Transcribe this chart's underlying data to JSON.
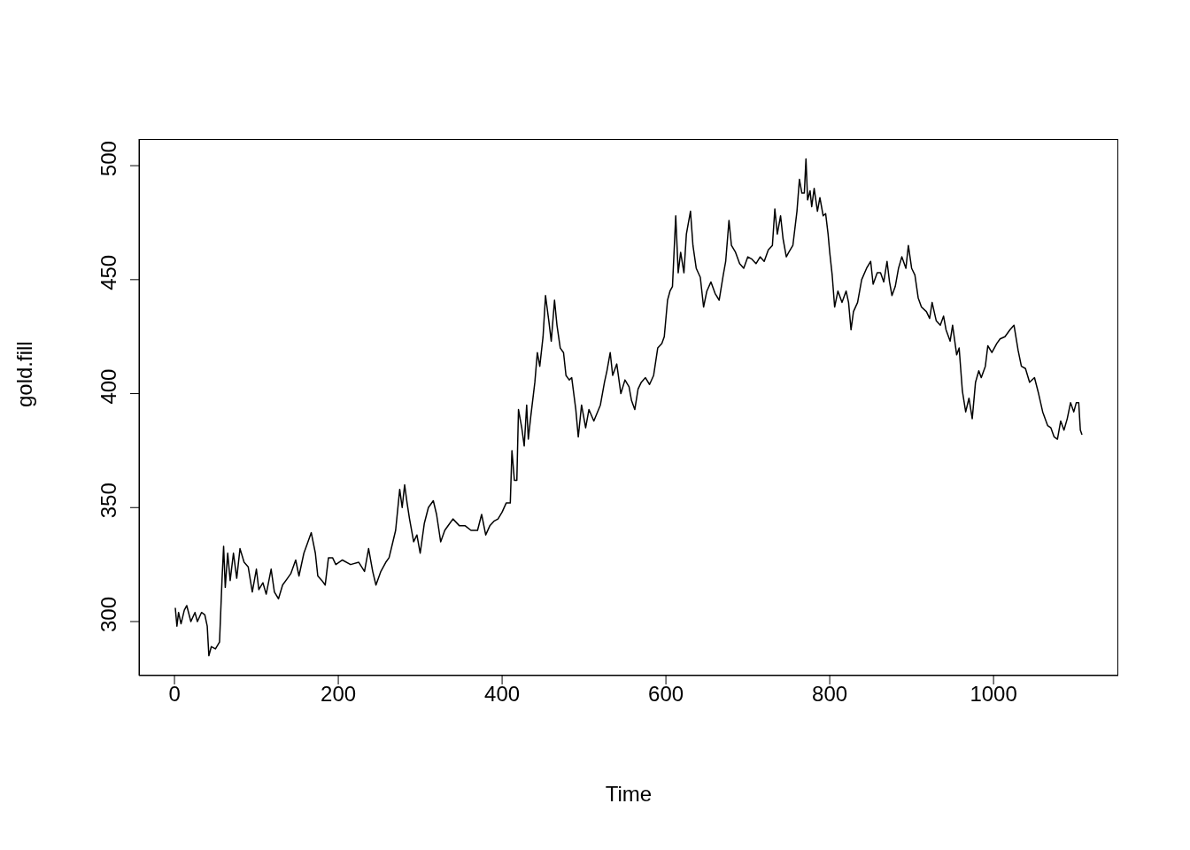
{
  "chart_data": {
    "type": "line",
    "xlabel": "Time",
    "ylabel": "gold.fill",
    "xlim": [
      -43.3,
      1152.3
    ],
    "ylim": [
      276.3,
      511.7
    ],
    "xticks": [
      0,
      200,
      400,
      600,
      800,
      1000
    ],
    "yticks": [
      300,
      350,
      400,
      450,
      500
    ],
    "marker": "none",
    "line_style": "solid",
    "series": [
      {
        "color": "#000000",
        "x": [
          1,
          3,
          5,
          8,
          12,
          15,
          20,
          25,
          28,
          33,
          37,
          40,
          42,
          45,
          50,
          55,
          58,
          60,
          62,
          65,
          68,
          72,
          76,
          80,
          85,
          90,
          95,
          100,
          103,
          108,
          112,
          118,
          122,
          127,
          132,
          138,
          142,
          148,
          152,
          158,
          162,
          167,
          172,
          175,
          180,
          184,
          188,
          193,
          197,
          205,
          215,
          225,
          232,
          237,
          242,
          246,
          252,
          258,
          262,
          266,
          270,
          275,
          278,
          281,
          284,
          287,
          292,
          296,
          300,
          305,
          310,
          316,
          320,
          325,
          330,
          336,
          340,
          348,
          355,
          362,
          370,
          375,
          380,
          385,
          390,
          395,
          400,
          405,
          410,
          412,
          415,
          418,
          420,
          424,
          427,
          430,
          432,
          435,
          440,
          443,
          446,
          450,
          453,
          457,
          460,
          464,
          467,
          471,
          475,
          478,
          482,
          485,
          490,
          493,
          497,
          502,
          506,
          512,
          520,
          525,
          528,
          532,
          535,
          540,
          545,
          550,
          555,
          558,
          562,
          566,
          570,
          575,
          580,
          585,
          590,
          595,
          598,
          602,
          605,
          608,
          612,
          615,
          618,
          622,
          625,
          630,
          633,
          637,
          642,
          646,
          650,
          655,
          660,
          665,
          670,
          673,
          677,
          680,
          685,
          690,
          695,
          700,
          705,
          710,
          715,
          720,
          725,
          730,
          733,
          736,
          740,
          743,
          747,
          750,
          755,
          760,
          763,
          766,
          769,
          771,
          773,
          776,
          778,
          781,
          785,
          788,
          792,
          795,
          798,
          800,
          803,
          806,
          810,
          815,
          820,
          823,
          826,
          829,
          834,
          839,
          845,
          850,
          853,
          858,
          862,
          866,
          870,
          873,
          876,
          880,
          884,
          888,
          893,
          896,
          900,
          904,
          908,
          912,
          918,
          922,
          925,
          930,
          935,
          939,
          942,
          947,
          950,
          955,
          958,
          962,
          966,
          970,
          974,
          978,
          982,
          985,
          990,
          993,
          998,
          1004,
          1008,
          1014,
          1020,
          1025,
          1030,
          1034,
          1039,
          1044,
          1050,
          1055,
          1060,
          1066,
          1070,
          1074,
          1078,
          1082,
          1086,
          1090,
          1094,
          1098,
          1101,
          1104,
          1106,
          1108
        ],
        "values": [
          306,
          298,
          304,
          299,
          305,
          307,
          300,
          304,
          300,
          304,
          303,
          298,
          285,
          289,
          288,
          291,
          318,
          333,
          315,
          330,
          318,
          330,
          319,
          332,
          326,
          324,
          313,
          323,
          314,
          317,
          312,
          323,
          313,
          310,
          316,
          319,
          321,
          327,
          320,
          330,
          334,
          339,
          330,
          320,
          318,
          316,
          328,
          328,
          325,
          327,
          325,
          326,
          322,
          332,
          322,
          316,
          322,
          326,
          328,
          334,
          340,
          358,
          350,
          360,
          352,
          345,
          335,
          338,
          330,
          343,
          350,
          353,
          347,
          335,
          340,
          343,
          345,
          342,
          342,
          340,
          340,
          347,
          338,
          342,
          344,
          345,
          348,
          352,
          352,
          375,
          362,
          362,
          393,
          385,
          377,
          395,
          380,
          390,
          405,
          418,
          412,
          425,
          443,
          432,
          423,
          441,
          430,
          420,
          418,
          408,
          406,
          407,
          393,
          381,
          395,
          385,
          393,
          388,
          395,
          405,
          410,
          418,
          408,
          413,
          400,
          406,
          403,
          397,
          393,
          402,
          405,
          407,
          404,
          408,
          420,
          422,
          425,
          441,
          445,
          447,
          478,
          453,
          462,
          453,
          470,
          480,
          465,
          455,
          451,
          438,
          445,
          449,
          444,
          441,
          452,
          458,
          476,
          465,
          462,
          457,
          455,
          460,
          459,
          457,
          460,
          458,
          463,
          465,
          481,
          470,
          478,
          468,
          460,
          462,
          465,
          480,
          494,
          488,
          488,
          503,
          485,
          489,
          482,
          490,
          480,
          486,
          478,
          479,
          470,
          462,
          452,
          438,
          445,
          440,
          445,
          440,
          428,
          436,
          440,
          450,
          455,
          458,
          448,
          453,
          453,
          449,
          458,
          449,
          443,
          447,
          455,
          460,
          455,
          465,
          455,
          452,
          442,
          438,
          436,
          433,
          440,
          432,
          430,
          434,
          428,
          423,
          430,
          417,
          420,
          401,
          392,
          398,
          389,
          405,
          410,
          407,
          412,
          421,
          418,
          422,
          424,
          425,
          428,
          430,
          419,
          412,
          411,
          405,
          407,
          400,
          392,
          386,
          385,
          381,
          380,
          388,
          384,
          389,
          396,
          392,
          396,
          396,
          384,
          382
        ]
      }
    ]
  }
}
